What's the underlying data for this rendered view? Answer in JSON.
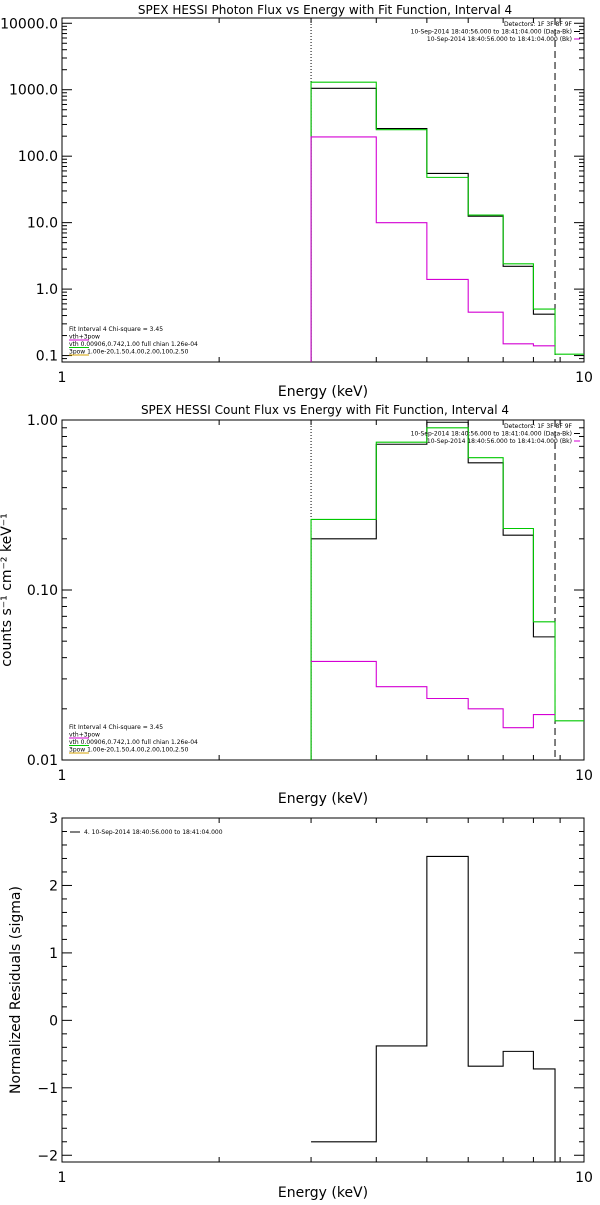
{
  "chart_data": [
    {
      "type": "line",
      "title": "SPEX HESSI Photon Flux vs Energy with Fit Function, Interval 4",
      "xlabel": "Energy (keV)",
      "ylabel": "",
      "xscale": "log",
      "yscale": "log",
      "xlim": [
        1,
        10
      ],
      "ylim": [
        0.08,
        12000
      ],
      "xticks": [
        {
          "value": 1,
          "label": "1"
        },
        {
          "value": 10,
          "label": "10"
        }
      ],
      "yticks": [
        {
          "value": 0.1,
          "label": "0.1"
        },
        {
          "value": 1,
          "label": "1.0"
        },
        {
          "value": 10,
          "label": "10.0"
        },
        {
          "value": 100,
          "label": "100.0"
        },
        {
          "value": 1000,
          "label": "1000.0"
        },
        {
          "value": 10000,
          "label": "10000.0"
        }
      ],
      "vlines": [
        {
          "x": 3.0,
          "style": "dotted"
        },
        {
          "x": 8.8,
          "style": "dashed"
        }
      ],
      "series": [
        {
          "color": "#000000",
          "edges": [
            3.0,
            4.0,
            5.0,
            6.0,
            7.0,
            8.0,
            8.8
          ],
          "values": [
            1050,
            260,
            55,
            12.5,
            2.2,
            0.42
          ],
          "open_start": true
        },
        {
          "color": "#00c800",
          "edges": [
            3.0,
            4.0,
            5.0,
            6.0,
            7.0,
            8.0,
            8.8,
            10.0
          ],
          "values": [
            1300,
            250,
            48,
            13,
            2.4,
            0.5,
            0.105
          ],
          "open_start": true
        },
        {
          "color": "#d400d4",
          "edges": [
            3.0,
            4.0,
            5.0,
            6.0,
            7.0,
            8.0,
            8.8
          ],
          "values": [
            195,
            10,
            1.4,
            0.45,
            0.15,
            0.14
          ],
          "open_start": true
        }
      ],
      "legend_left": [
        {
          "color": "#000000",
          "text": "Fit Interval 4   Chi-square = 3.45"
        },
        {
          "color": "#d400d4",
          "text": "vth+3pow"
        },
        {
          "color": "#00c800",
          "text": "vth 0.00906,0.742,1.00   full chian 1.26e-04"
        },
        {
          "color": "#d4a000",
          "text": "3pow 1.00e-20,1.50,4.00,2.00,100,2.50"
        }
      ],
      "legend_right": [
        {
          "color": "#000000",
          "text": "Detectors: 1F 3F 8F 9F"
        },
        {
          "color": "#000000",
          "text": "10-Sep-2014 18:40:56.000 to 18:41:04.000 (Data-Bk)"
        },
        {
          "color": "#d400d4",
          "text": "10-Sep-2014 18:40:56.000 to 18:41:04.000 (Bk)"
        }
      ]
    },
    {
      "type": "line",
      "title": "SPEX HESSI Count Flux vs Energy with Fit Function, Interval 4",
      "xlabel": "Energy (keV)",
      "ylabel": "counts s⁻¹ cm⁻² keV⁻¹",
      "xscale": "log",
      "yscale": "log",
      "xlim": [
        1,
        10
      ],
      "ylim": [
        0.01,
        1.0
      ],
      "xticks": [
        {
          "value": 1,
          "label": "1"
        },
        {
          "value": 10,
          "label": "10"
        }
      ],
      "yticks": [
        {
          "value": 0.01,
          "label": "0.01"
        },
        {
          "value": 0.1,
          "label": "0.10"
        },
        {
          "value": 1.0,
          "label": "1.00"
        }
      ],
      "vlines": [
        {
          "x": 3.0,
          "style": "dotted"
        },
        {
          "x": 8.8,
          "style": "dashed"
        }
      ],
      "series": [
        {
          "color": "#000000",
          "edges": [
            3.0,
            4.0,
            5.0,
            6.0,
            7.0,
            8.0,
            8.8
          ],
          "values": [
            0.2,
            0.72,
            0.97,
            0.56,
            0.21,
            0.053
          ],
          "open_start": true
        },
        {
          "color": "#00c800",
          "edges": [
            3.0,
            4.0,
            5.0,
            6.0,
            7.0,
            8.0,
            8.8,
            10.0
          ],
          "values": [
            0.26,
            0.74,
            0.9,
            0.6,
            0.23,
            0.065,
            0.017
          ],
          "open_start": true
        },
        {
          "color": "#d400d4",
          "edges": [
            3.0,
            4.0,
            5.0,
            6.0,
            7.0,
            8.0,
            8.8
          ],
          "values": [
            0.038,
            0.027,
            0.023,
            0.02,
            0.0155,
            0.0185
          ],
          "open_start": false
        }
      ],
      "legend_left": [
        {
          "color": "#000000",
          "text": "Fit Interval 4   Chi-square = 3.45"
        },
        {
          "color": "#d400d4",
          "text": "vth+3pow"
        },
        {
          "color": "#00c800",
          "text": "vth 0.00906,0.742,1.00   full chian 1.26e-04"
        },
        {
          "color": "#d4a000",
          "text": "3pow 1.00e-20,1.50,4.00,2.00,100,2.50"
        }
      ],
      "legend_right": [
        {
          "color": "#000000",
          "text": "Detectors: 1F 3F 8F 9F"
        },
        {
          "color": "#000000",
          "text": "10-Sep-2014 18:40:56.000 to 18:41:04.000 (Data-Bk)"
        },
        {
          "color": "#d400d4",
          "text": "10-Sep-2014 18:40:56.000 to 18:41:04.000 (Bk)"
        }
      ]
    },
    {
      "type": "line",
      "title": "",
      "xlabel": "Energy (keV)",
      "ylabel": "Normalized Residuals (sigma)",
      "xscale": "log",
      "yscale": "linear",
      "xlim": [
        1,
        10
      ],
      "ylim": [
        -2.1,
        3.0
      ],
      "xticks": [
        {
          "value": 1,
          "label": "1"
        },
        {
          "value": 10,
          "label": "10"
        }
      ],
      "yticks": [
        {
          "value": -2,
          "label": "−2"
        },
        {
          "value": -1,
          "label": "−1"
        },
        {
          "value": 0,
          "label": "0"
        },
        {
          "value": 1,
          "label": "1"
        },
        {
          "value": 2,
          "label": "2"
        },
        {
          "value": 3,
          "label": "3"
        }
      ],
      "vlines": [],
      "series": [
        {
          "color": "#000000",
          "edges": [
            3.0,
            4.0,
            5.0,
            6.0,
            7.0,
            8.0,
            8.8
          ],
          "values": [
            -1.8,
            -0.38,
            2.43,
            -0.68,
            -0.46,
            -0.72
          ],
          "open_start": false,
          "close_end_to": -2.1
        }
      ],
      "legend_left": [
        {
          "color": "#000000",
          "text": "4. 10-Sep-2014 18:40:56.000 to 18:41:04.000"
        }
      ],
      "legend_right": []
    }
  ]
}
